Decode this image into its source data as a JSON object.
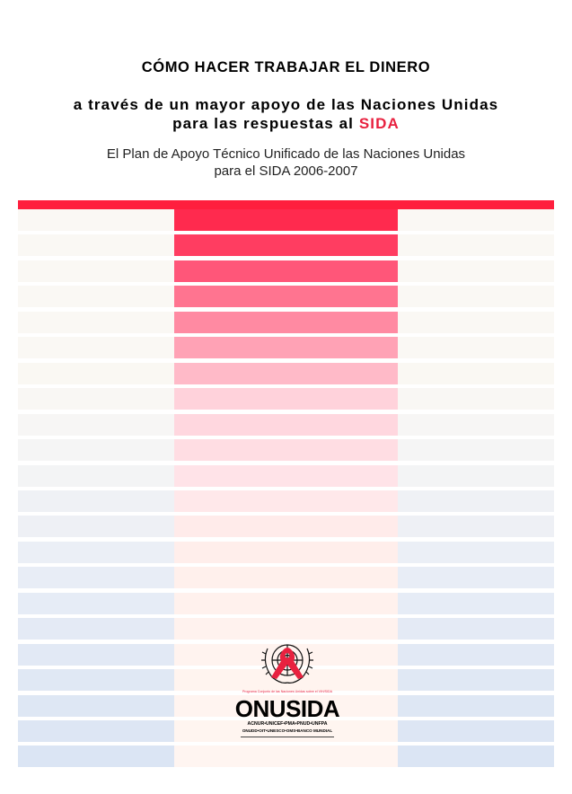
{
  "header": {
    "title": "CÓMO HACER TRABAJAR EL DINERO",
    "subtitle_line1": "a través de un mayor apoyo de las Naciones Unidas",
    "subtitle_line2_prefix": "para las respuestas al ",
    "subtitle_line2_highlight": "SIDA",
    "plan_line1": "El Plan de Apoyo Técnico Unificado de las Naciones Unidas",
    "plan_line2": "para el SIDA 2006-2007"
  },
  "colors": {
    "accent_red": "#ff1f3e",
    "highlight_red": "#e8213f",
    "side_bands": [
      "#faf8f4",
      "#faf8f4",
      "#faf8f4",
      "#faf8f4",
      "#faf8f4",
      "#faf8f4",
      "#faf8f3",
      "#f9f7f4",
      "#f7f6f5",
      "#f5f5f5",
      "#f3f4f5",
      "#eff1f5",
      "#eef0f5",
      "#ebeff6",
      "#e8edf6",
      "#e6ecf6",
      "#e4eaf5",
      "#e2e9f5",
      "#e0e8f4",
      "#dee7f4",
      "#dde6f4",
      "#dbe5f4"
    ],
    "center_bands": [
      "#ff2a4e",
      "#ff3d61",
      "#ff5679",
      "#ff7490",
      "#ff8aa2",
      "#ffa2b5",
      "#ffbac8",
      "#ffd2db",
      "#ffd7df",
      "#ffdde3",
      "#ffe3e8",
      "#ffe8ea",
      "#ffebea",
      "#ffeeeb",
      "#fff0ec",
      "#fff1ed",
      "#fff2ee",
      "#fff3ef",
      "#fff4ef",
      "#fff4f0",
      "#fff5f0",
      "#fff5f1"
    ]
  },
  "logo": {
    "caption": "Programa Conjunto de las Naciones Unidas sobre el VIH/SIDA",
    "name": "ONUSIDA",
    "agencies_line1": "ACNUR•UNICEF•PMA•PNUD•UNFPA",
    "agencies_line2": "ONUDD•OIT•UNESCO•OMS•BANCO MUNDIAL",
    "emblem_icon": "un-emblem-red-ribbon-icon"
  }
}
